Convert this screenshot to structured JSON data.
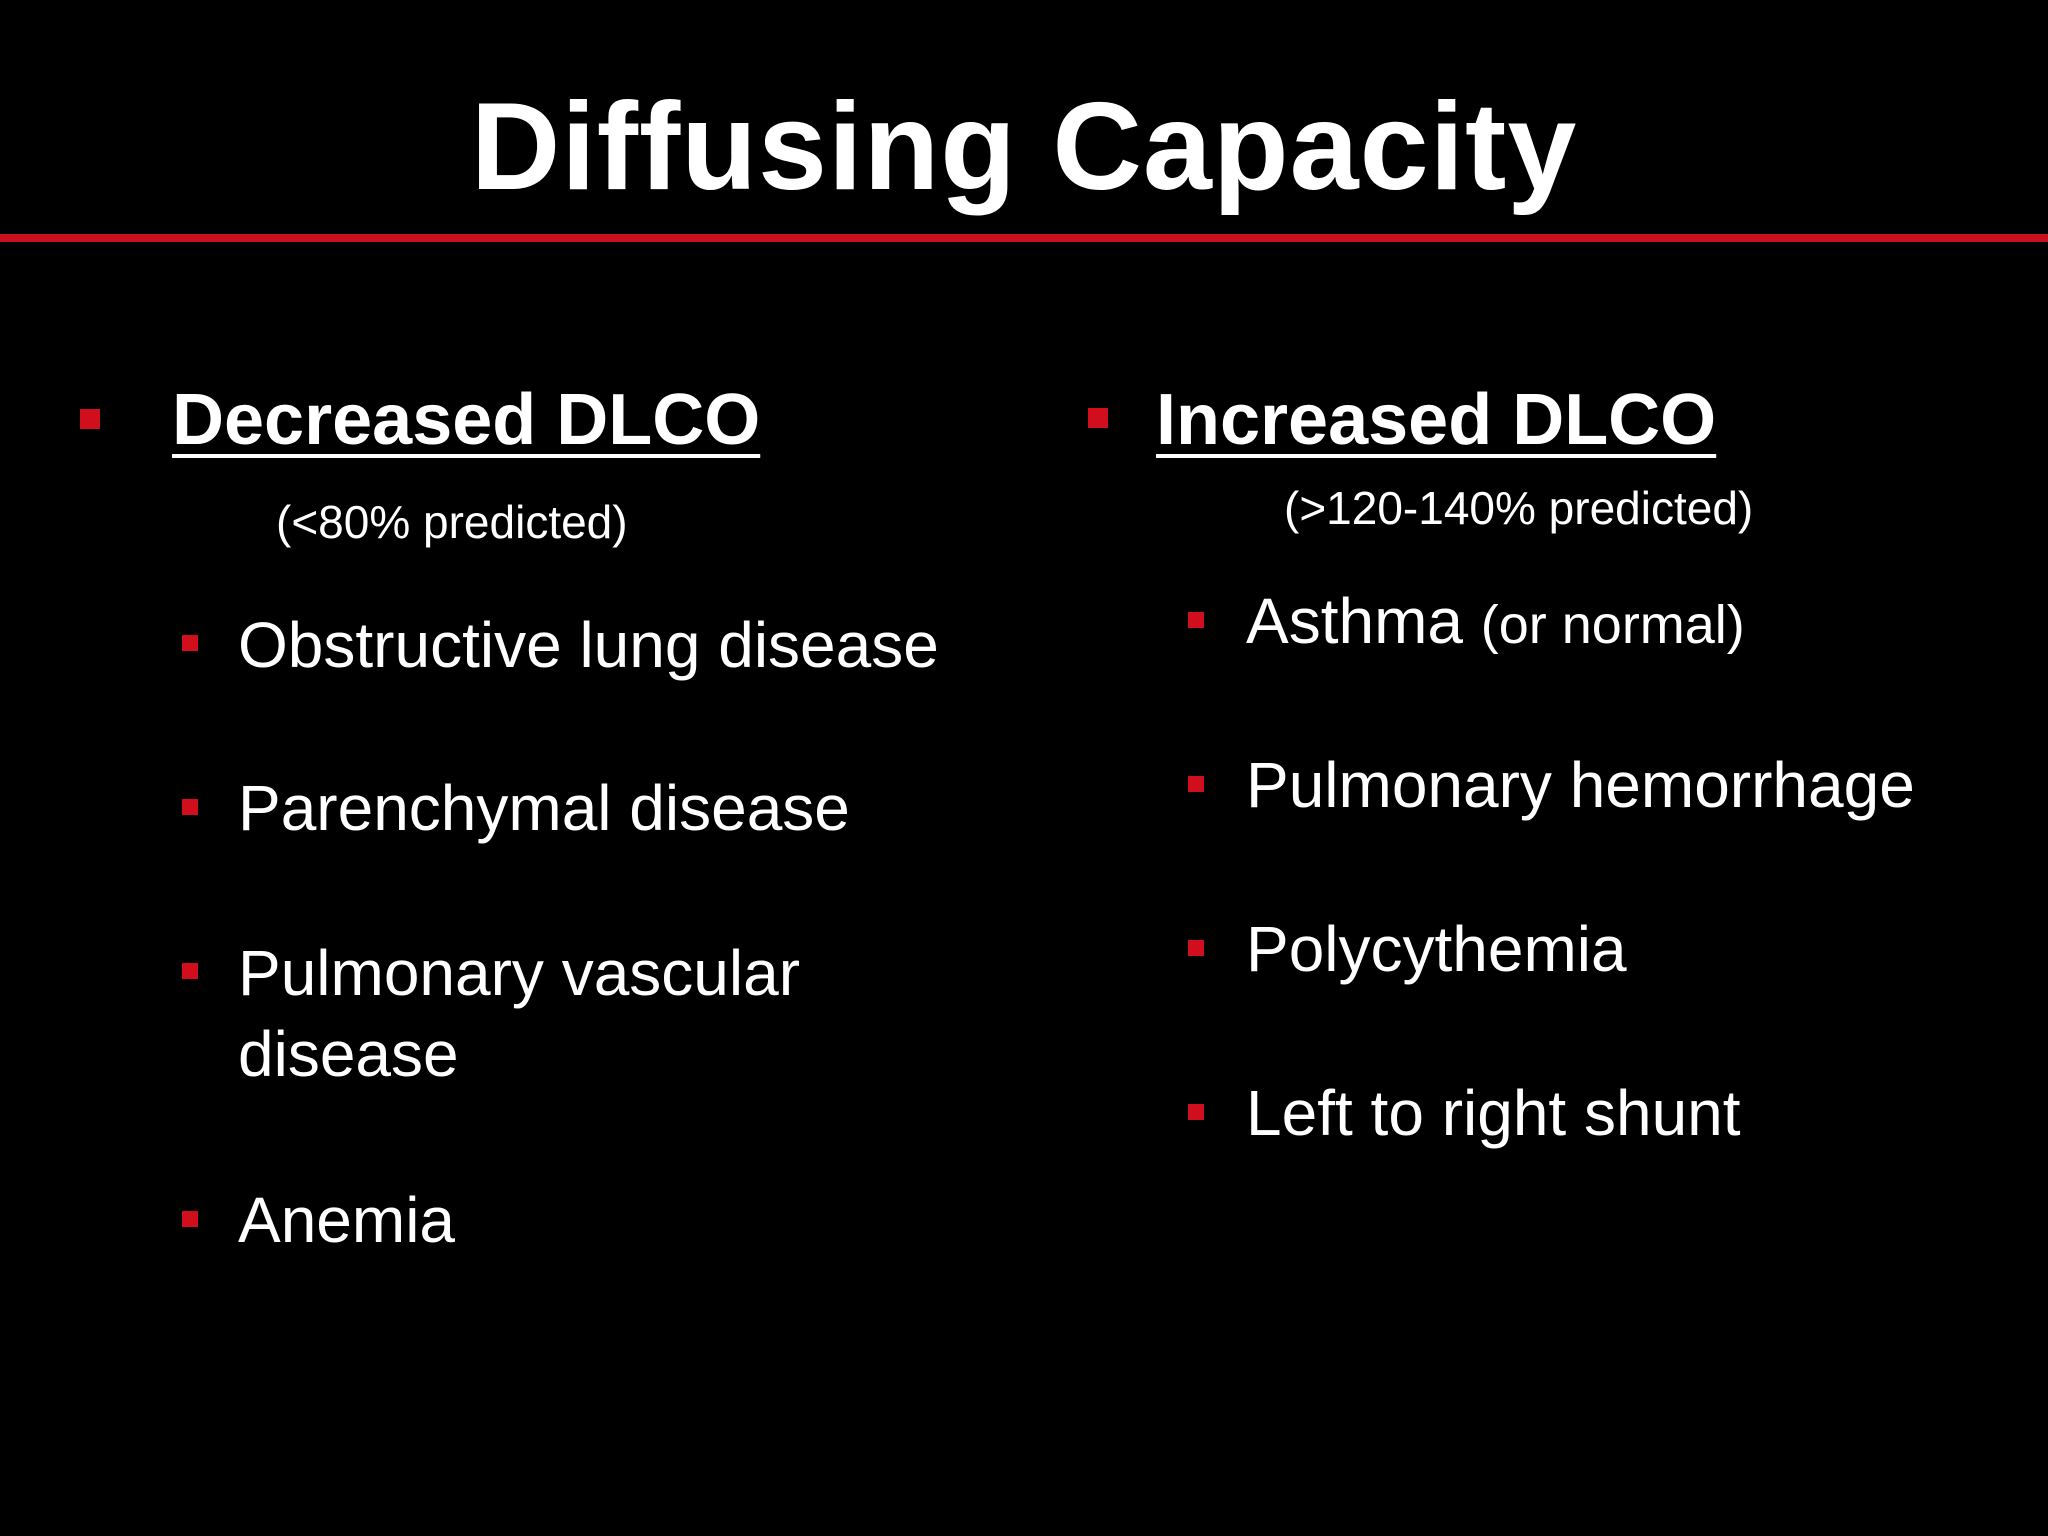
{
  "title": "Diffusing Capacity",
  "colors": {
    "background": "#000000",
    "text": "#ffffff",
    "accent": "#c8101e"
  },
  "bullet_icon": "red-square-bullet",
  "left": {
    "heading": "Decreased DLCO",
    "subheading": "(<80% predicted)",
    "items": [
      {
        "label": "Obstructive lung disease"
      },
      {
        "label": "Parenchymal disease"
      },
      {
        "line1": "Pulmonary vascular",
        "line2": "disease"
      },
      {
        "label": "Anemia"
      }
    ]
  },
  "right": {
    "heading": "Increased DLCO",
    "subheading": "(>120-140% predicted)",
    "items": [
      {
        "label": "Asthma",
        "note": "(or normal)"
      },
      {
        "label": "Pulmonary hemorrhage"
      },
      {
        "label": "Polycythemia"
      },
      {
        "label": "Left to right shunt"
      }
    ]
  }
}
